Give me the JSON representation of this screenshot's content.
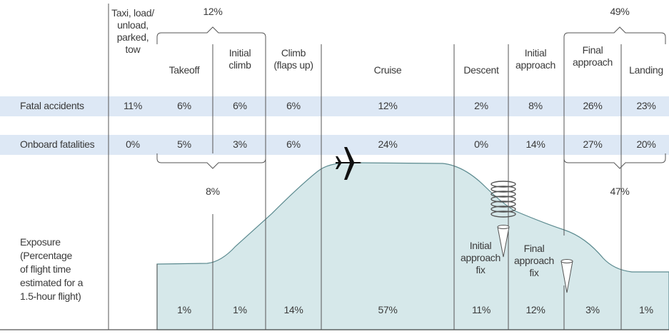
{
  "phases": [
    {
      "label": "Taxi, load/\nunload,\nparked,\ntow",
      "fatal": "11%",
      "onboard": "0%",
      "exposure": ""
    },
    {
      "label": "Takeoff",
      "fatal": "6%",
      "onboard": "5%",
      "exposure": "1%"
    },
    {
      "label": "Initial\nclimb",
      "fatal": "6%",
      "onboard": "3%",
      "exposure": "1%"
    },
    {
      "label": "Climb\n(flaps up)",
      "fatal": "6%",
      "onboard": "6%",
      "exposure": "14%"
    },
    {
      "label": "Cruise",
      "fatal": "12%",
      "onboard": "24%",
      "exposure": "57%"
    },
    {
      "label": "Descent",
      "fatal": "2%",
      "onboard": "0%",
      "exposure": "11%"
    },
    {
      "label": "Initial\napproach",
      "fatal": "8%",
      "onboard": "14%",
      "exposure": "12%"
    },
    {
      "label": "Final\napproach",
      "fatal": "26%",
      "onboard": "27%",
      "exposure": "3%"
    },
    {
      "label": "Landing",
      "fatal": "23%",
      "onboard": "20%",
      "exposure": "1%"
    }
  ],
  "rows": {
    "fatal_label": "Fatal accidents",
    "onboard_label": "Onboard fatalities",
    "exposure_label": "Exposure\n(Percentage\nof flight time\nestimated for a\n1.5-hour flight)"
  },
  "groups": {
    "takeoff_climb_fatal": "12%",
    "takeoff_climb_onboard": "8%",
    "approach_landing_fatal": "49%",
    "approach_landing_onboard": "47%"
  },
  "annotations": {
    "initial_approach_fix": "Initial\napproach\nfix",
    "final_approach_fix": "Final\napproach\nfix"
  },
  "colors": {
    "row_band": "#dde8f5",
    "exposure_fill": "#d6e8ea",
    "line": "#555555",
    "profile": "#5b8a8f"
  },
  "icons": [
    "airplane-icon",
    "holding-pattern-icon",
    "approach-fix-cone-icon"
  ]
}
